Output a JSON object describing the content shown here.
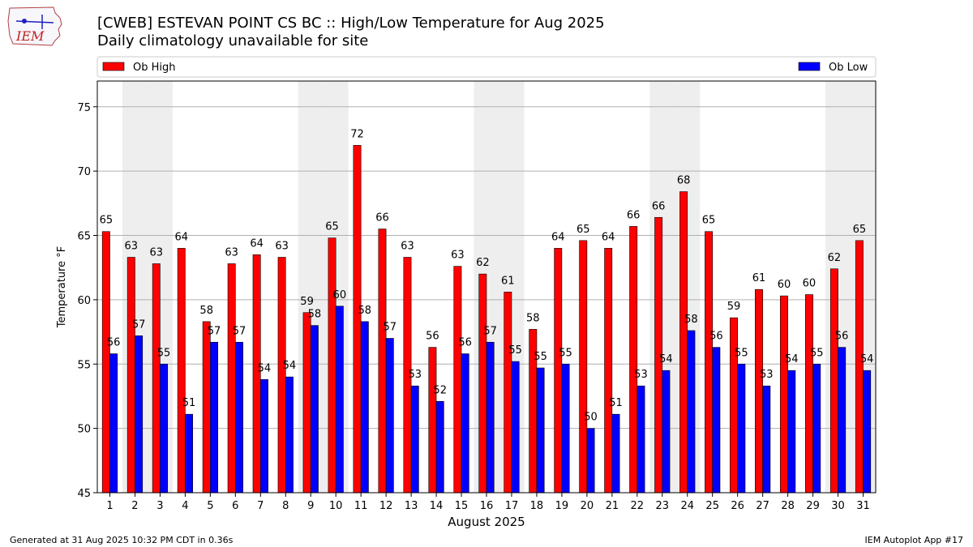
{
  "header": {
    "title": "[CWEB] ESTEVAN POINT CS  BC :: High/Low Temperature for Aug 2025",
    "subtitle": "Daily climatology unavailable for site",
    "logo_text": "IEM"
  },
  "footer": {
    "left": "Generated at 31 Aug 2025 10:32 PM CDT in 0.36s",
    "right": "IEM Autoplot App #17"
  },
  "colors": {
    "high": "#ff0000",
    "low": "#0000ff",
    "weekend_band": "#eeeeee",
    "grid": "#b0b0b0"
  },
  "chart_data": {
    "type": "bar",
    "xlabel": "August 2025",
    "ylabel": "Temperature °F",
    "ylim": [
      45,
      77
    ],
    "yticks": [
      45,
      50,
      55,
      60,
      65,
      70,
      75
    ],
    "grid": "horizontal",
    "legend": "top",
    "categories": [
      "1",
      "2",
      "3",
      "4",
      "5",
      "6",
      "7",
      "8",
      "9",
      "10",
      "11",
      "12",
      "13",
      "14",
      "15",
      "16",
      "17",
      "18",
      "19",
      "20",
      "21",
      "22",
      "23",
      "24",
      "25",
      "26",
      "27",
      "28",
      "29",
      "30",
      "31"
    ],
    "shaded_days": [
      2,
      3,
      9,
      10,
      16,
      17,
      23,
      24,
      30,
      31
    ],
    "series": [
      {
        "name": "Ob High",
        "values": [
          65.3,
          63.3,
          62.8,
          64.0,
          58.3,
          62.8,
          63.5,
          63.3,
          59.0,
          64.8,
          72.0,
          65.5,
          63.3,
          56.3,
          62.6,
          62.0,
          60.6,
          57.7,
          64.0,
          64.6,
          64.0,
          65.7,
          66.4,
          68.4,
          65.3,
          58.6,
          60.8,
          60.3,
          60.4,
          62.4,
          64.6
        ],
        "labels": [
          "65",
          "63",
          "63",
          "64",
          "58",
          "63",
          "64",
          "63",
          "59",
          "65",
          "72",
          "66",
          "63",
          "56",
          "63",
          "62",
          "61",
          "58",
          "64",
          "65",
          "64",
          "66",
          "66",
          "68",
          "65",
          "59",
          "61",
          "60",
          "60",
          "62",
          "65"
        ]
      },
      {
        "name": "Ob Low",
        "values": [
          55.8,
          57.2,
          55.0,
          51.1,
          56.7,
          56.7,
          53.8,
          54.0,
          58.0,
          59.5,
          58.3,
          57.0,
          53.3,
          52.1,
          55.8,
          56.7,
          55.2,
          54.7,
          55.0,
          50.0,
          51.1,
          53.3,
          54.5,
          57.6,
          56.3,
          55.0,
          53.3,
          54.5,
          55.0,
          56.3,
          54.5
        ],
        "labels": [
          "56",
          "57",
          "55",
          "51",
          "57",
          "57",
          "54",
          "54",
          "58",
          "60",
          "58",
          "57",
          "53",
          "52",
          "56",
          "57",
          "55",
          "55",
          "55",
          "50",
          "51",
          "53",
          "54",
          "58",
          "56",
          "55",
          "53",
          "54",
          "55",
          "56",
          "54"
        ]
      }
    ]
  }
}
